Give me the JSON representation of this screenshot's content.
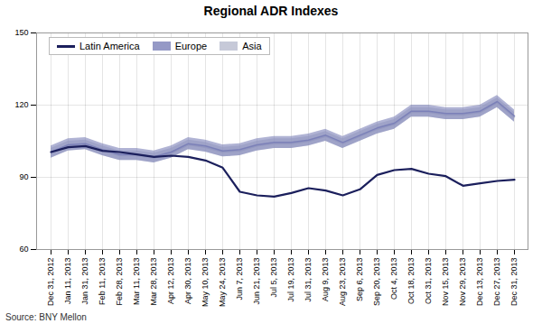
{
  "chart_data": {
    "type": "line",
    "title": "Regional ADR Indexes",
    "caption": "Source: BNY Mellon",
    "categories": [
      "Dec 31, 2012",
      "Jan 11, 2013",
      "Jan 31, 2013",
      "Feb 11, 2013",
      "Feb 28, 2013",
      "Mar 11, 2013",
      "Mar 28, 2013",
      "Apr 12, 2013",
      "Apr 30, 2013",
      "May 10, 2013",
      "May 24, 2013",
      "Jun 7, 2013",
      "Jun 21, 2013",
      "Jul 5, 2013",
      "Jul 19, 2013",
      "Jul 31, 2013",
      "Aug 9, 2013",
      "Aug 23, 2013",
      "Sep 6, 2013",
      "Sep 20, 2013",
      "Oct 4, 2013",
      "Oct 18, 2013",
      "Oct 31, 2013",
      "Nov 15, 2013",
      "Nov 29, 2013",
      "Dec 13, 2013",
      "Dec 27, 2013",
      "Dec 31, 2013"
    ],
    "series": [
      {
        "name": "Latin America",
        "color": "#1b1f5c",
        "values": [
          100.5,
          102.5,
          103.0,
          101.0,
          100.5,
          99.5,
          98.5,
          99.0,
          98.5,
          97.0,
          94.0,
          84.0,
          82.5,
          82.0,
          83.5,
          85.5,
          84.5,
          82.5,
          85.0,
          91.0,
          93.0,
          93.5,
          91.5,
          90.5,
          86.5,
          87.5,
          88.5,
          89.0
        ]
      },
      {
        "name": "Europe",
        "color": "#7b80b8",
        "band": 2.5,
        "values": [
          100.5,
          103.5,
          104.0,
          101.5,
          99.5,
          99.5,
          98.5,
          100.5,
          104.0,
          103.0,
          101.0,
          101.5,
          103.5,
          104.5,
          104.5,
          105.5,
          107.5,
          104.5,
          107.5,
          110.5,
          112.5,
          117.5,
          117.5,
          116.5,
          116.5,
          117.5,
          121.5,
          115.5
        ]
      },
      {
        "name": "Asia",
        "color": "#b8bcce",
        "band": 2.0,
        "values": [
          100.0,
          103.0,
          103.5,
          101.0,
          99.0,
          99.0,
          98.0,
          100.0,
          103.5,
          102.5,
          100.5,
          101.0,
          103.0,
          104.0,
          104.0,
          105.0,
          107.0,
          104.0,
          107.0,
          110.0,
          112.0,
          117.0,
          117.0,
          116.0,
          116.0,
          117.0,
          121.0,
          115.0
        ]
      }
    ],
    "ylim": [
      60,
      150
    ],
    "yticks": [
      60,
      90,
      120,
      150
    ],
    "grid": true,
    "legend": "upper left"
  }
}
